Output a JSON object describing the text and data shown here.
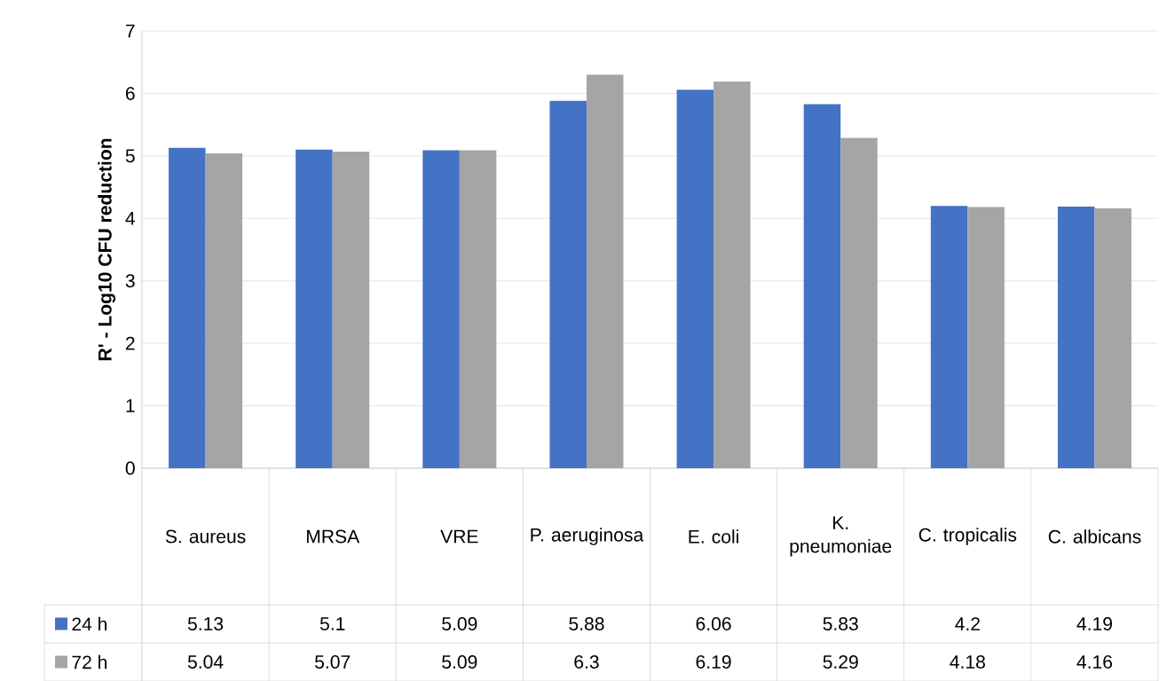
{
  "chart_data": {
    "type": "bar",
    "ylabel": "R' - Log10 CFU reduction",
    "categories": [
      "S. aureus",
      "MRSA",
      "VRE",
      "P. aeruginosa",
      "E. coli",
      "K. pneumoniae",
      "C. tropicalis",
      "C. albicans"
    ],
    "series": [
      {
        "name": "24 h",
        "color": "#4472c4",
        "values": [
          5.13,
          5.1,
          5.09,
          5.88,
          6.06,
          5.83,
          4.2,
          4.19
        ]
      },
      {
        "name": "72 h",
        "color": "#a5a5a5",
        "values": [
          5.04,
          5.07,
          5.09,
          6.3,
          6.19,
          5.29,
          4.18,
          4.16
        ]
      }
    ],
    "ylim": [
      0,
      7
    ],
    "yticks": [
      0,
      1,
      2,
      3,
      4,
      5,
      6,
      7
    ],
    "grid": "y",
    "legend": "bottom left",
    "data_labels": true
  }
}
